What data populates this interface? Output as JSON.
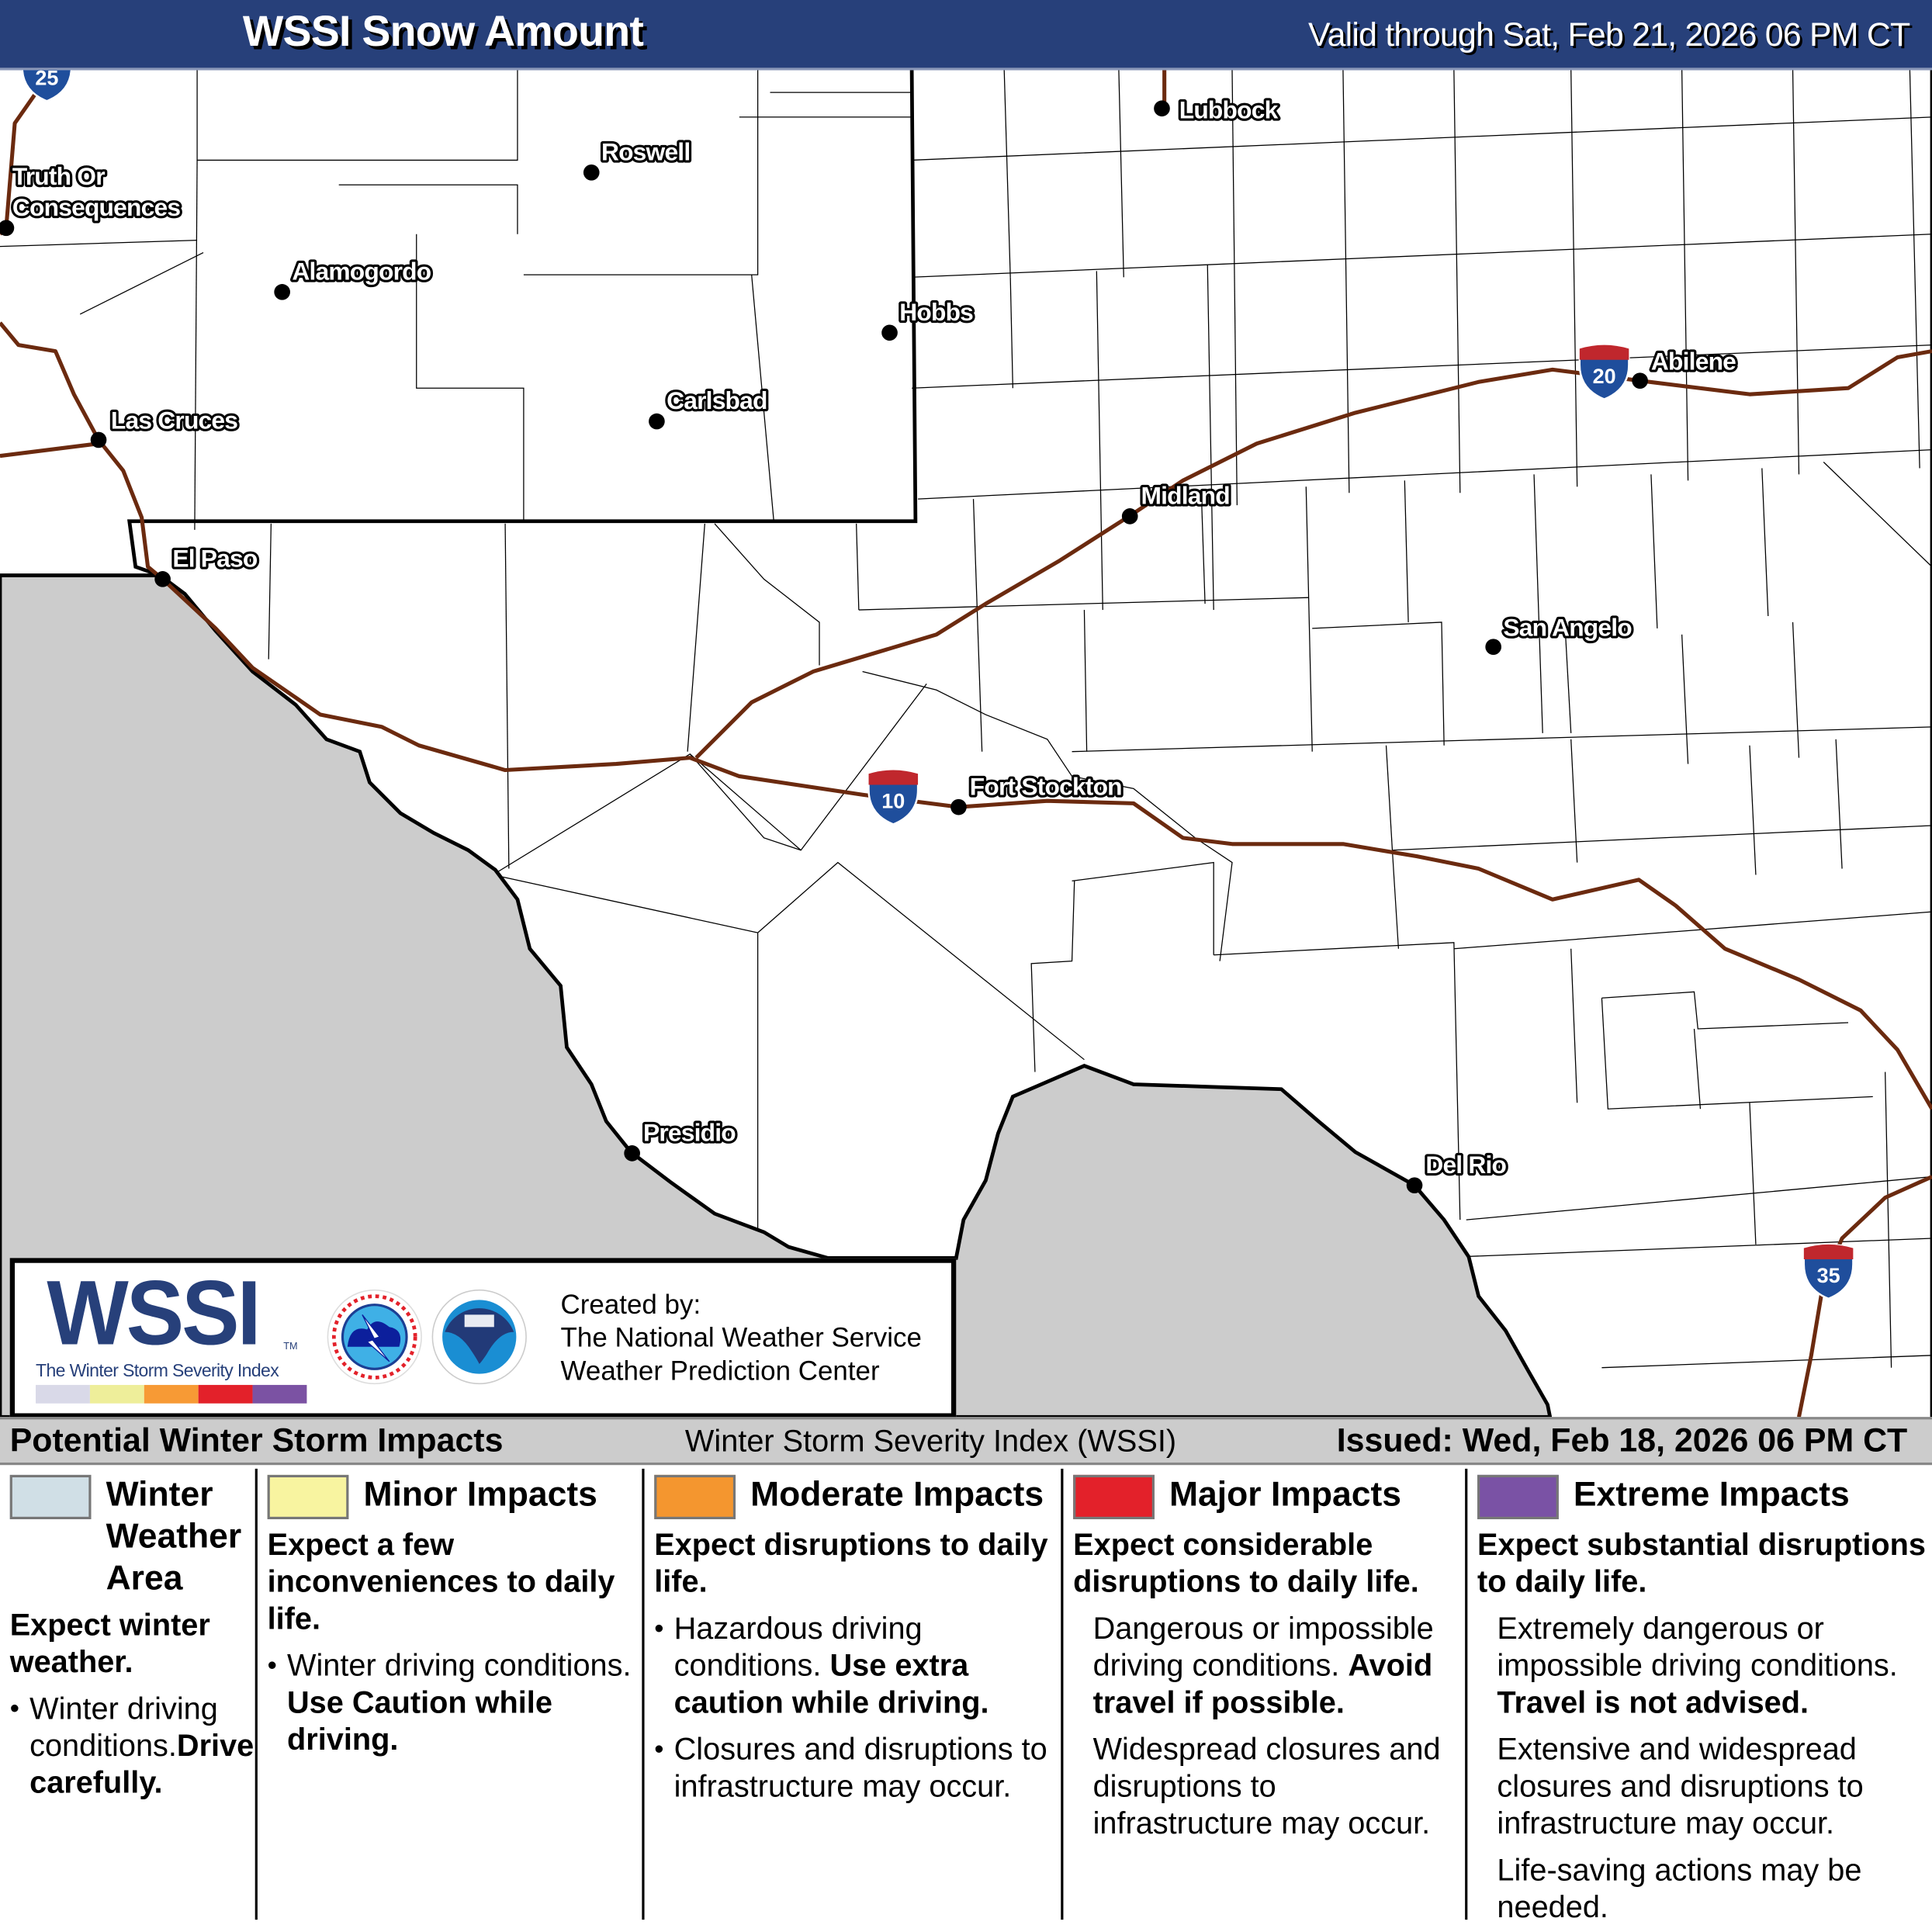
{
  "header": {
    "title": "WSSI Snow Amount",
    "valid": "Valid through Sat, Feb 21, 2026 06 PM CT"
  },
  "map": {
    "colors": {
      "mexico": "#cccccc",
      "road": "#6b2a0f",
      "shield_blue": "#1f4e9c",
      "shield_red": "#c0272d",
      "header": "#27407a"
    },
    "highways": [
      {
        "name": "I-25",
        "number": "25"
      },
      {
        "name": "I-20",
        "number": "20"
      },
      {
        "name": "I-10",
        "number": "10"
      },
      {
        "name": "I-35",
        "number": "35"
      }
    ],
    "cities": [
      {
        "lines": [
          "Truth Or",
          "Consequences"
        ]
      },
      {
        "lines": [
          "Roswell"
        ]
      },
      {
        "lines": [
          "Alamogordo"
        ]
      },
      {
        "lines": [
          "Hobbs"
        ]
      },
      {
        "lines": [
          "Carlsbad"
        ]
      },
      {
        "lines": [
          "Las Cruces"
        ]
      },
      {
        "lines": [
          "El Paso"
        ]
      },
      {
        "lines": [
          "Lubbock"
        ]
      },
      {
        "lines": [
          "Abilene"
        ]
      },
      {
        "lines": [
          "Midland"
        ]
      },
      {
        "lines": [
          "San Angelo"
        ]
      },
      {
        "lines": [
          "Fort Stockton"
        ]
      },
      {
        "lines": [
          "Presidio"
        ]
      },
      {
        "lines": [
          "Del Rio"
        ]
      }
    ]
  },
  "logos": {
    "wssi": "WSSI",
    "tm": "TM",
    "wssi_subtitle": "The Winter Storm Severity Index",
    "wssi_colors": [
      "#d9d9e8",
      "#eeee9a",
      "#f79a35",
      "#e3212a",
      "#7b52a3"
    ],
    "nws_lettering": "NATIONAL WEATHER SERVICE",
    "noaa_lettering": "NOAA",
    "created_by": [
      "Created by:",
      "The National Weather Service",
      "Weather Prediction Center"
    ]
  },
  "legend_bar": {
    "left": "Potential Winter Storm Impacts",
    "middle": "Winter Storm Severity Index (WSSI)",
    "right": "Issued: Wed, Feb 18, 2026 06 PM CT"
  },
  "legend": [
    {
      "color": "#d0dfe6",
      "title_lines": [
        "Winter",
        "Weather",
        "Area"
      ],
      "heading": "Expect winter weather.",
      "items": [
        {
          "bullet": true,
          "text": "Winter driving conditions.",
          "bold": "Drive carefully."
        }
      ]
    },
    {
      "color": "#f8f4a0",
      "title": "Minor Impacts",
      "heading": "Expect a few inconveniences to daily life.",
      "items": [
        {
          "bullet": true,
          "text": "Winter driving conditions. ",
          "bold": "Use Caution while driving."
        }
      ]
    },
    {
      "color": "#f4962f",
      "title": "Moderate Impacts",
      "heading": "Expect disruptions to daily life.",
      "items": [
        {
          "bullet": true,
          "text": "Hazardous driving conditions. ",
          "bold": "Use extra caution while driving."
        },
        {
          "bullet": true,
          "text": "Closures and disruptions to infrastructure may occur.",
          "bold": ""
        }
      ]
    },
    {
      "color": "#e3212a",
      "title": "Major Impacts",
      "heading": "Expect considerable disruptions to daily life.",
      "items": [
        {
          "bullet": false,
          "text": "Dangerous or impossible driving conditions. ",
          "bold": "Avoid travel if possible."
        },
        {
          "bullet": false,
          "text": "Widespread closures and disruptions to infrastructure may occur.",
          "bold": ""
        }
      ]
    },
    {
      "color": "#7a52a5",
      "title": "Extreme Impacts",
      "heading": "Expect substantial disruptions to daily life.",
      "items": [
        {
          "bullet": false,
          "text": "Extremely dangerous or impossible driving conditions. ",
          "bold": "Travel is not advised."
        },
        {
          "bullet": false,
          "text": "Extensive and widespread closures and disruptions to infrastructure may occur.",
          "bold": ""
        },
        {
          "bullet": false,
          "text": "Life-saving actions may be needed.",
          "bold": ""
        }
      ]
    }
  ]
}
